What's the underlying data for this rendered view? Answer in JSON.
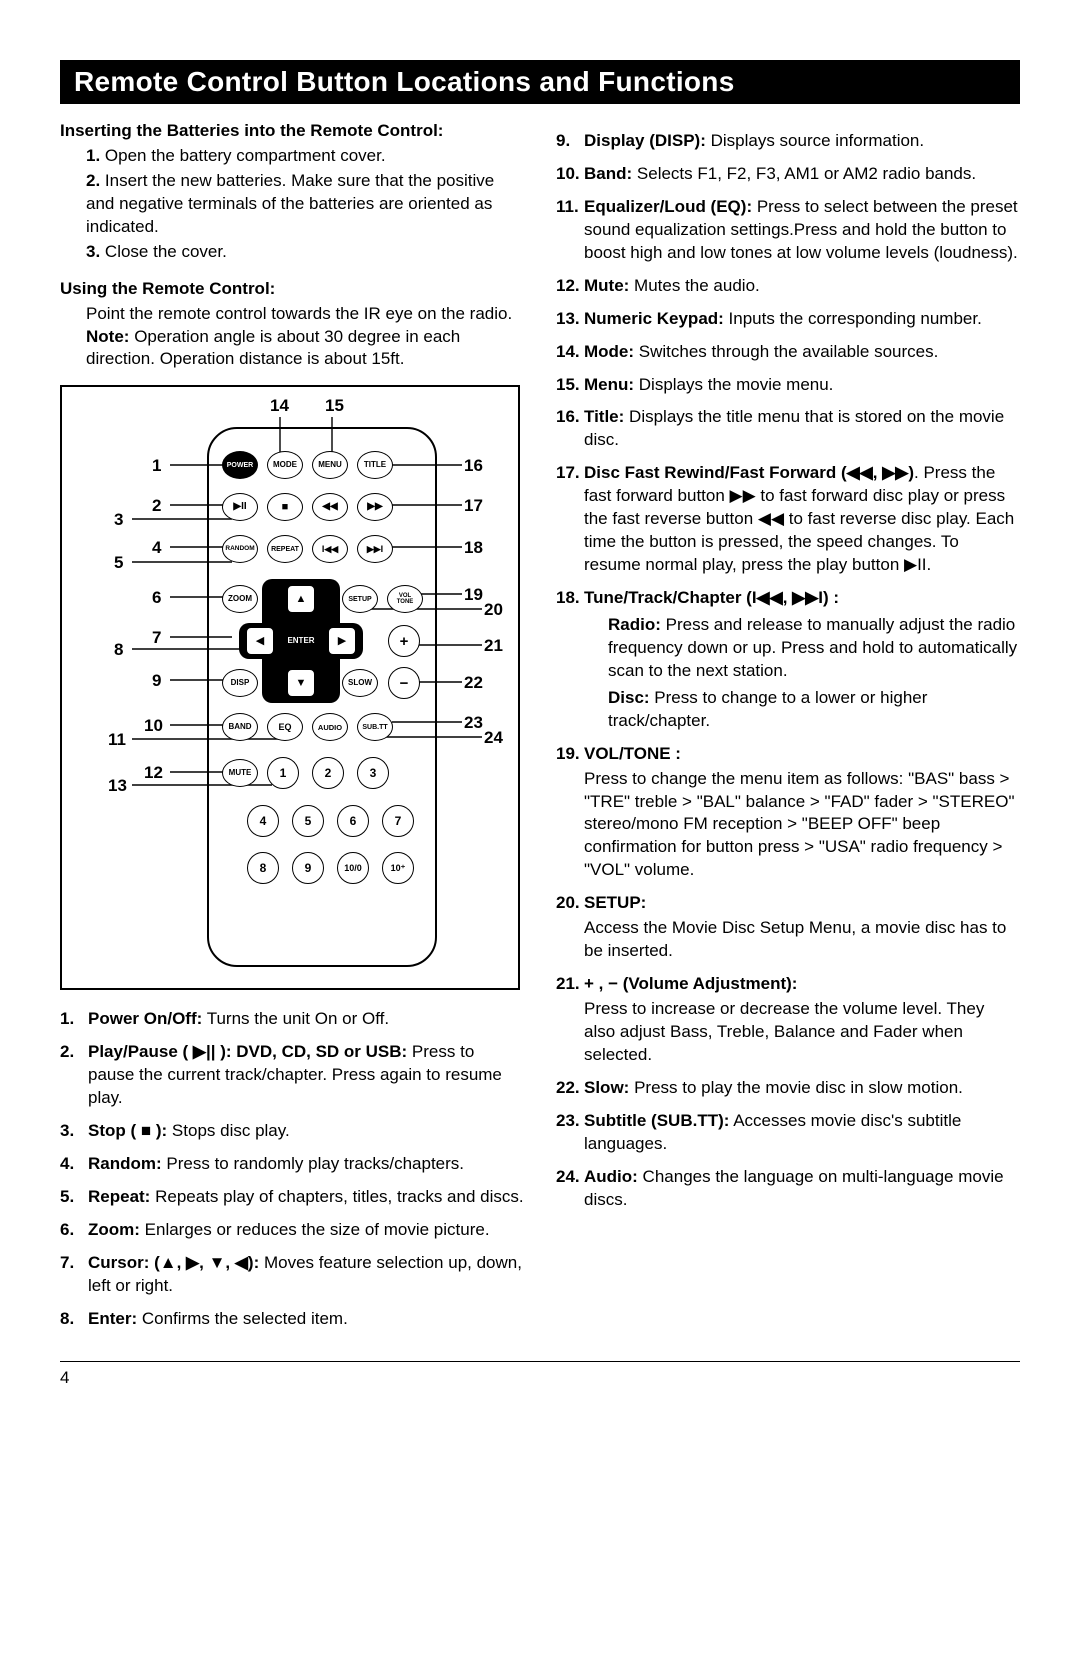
{
  "title": "Remote Control Button Locations and Functions",
  "page_number": "4",
  "intro": {
    "batteries_heading": "Inserting the Batteries into the Remote Control:",
    "batteries_steps": [
      "Open the battery compartment cover.",
      "Insert the new batteries. Make sure that the positive and negative terminals of the batteries are oriented as indicated.",
      "Close the cover."
    ],
    "using_heading": "Using the Remote Control:",
    "using_body": "Point the remote control towards the IR eye on the radio.",
    "using_note_label": "Note:",
    "using_note": "Operation angle is about 30 degree in each direction. Operation distance is about 15ft."
  },
  "diagram": {
    "top_labels": [
      "14",
      "15"
    ],
    "left_labels": [
      "1",
      "2",
      "3",
      "4",
      "5",
      "6",
      "7",
      "8",
      "9",
      "10",
      "11",
      "12",
      "13"
    ],
    "right_labels": [
      "16",
      "17",
      "18",
      "19",
      "20",
      "21",
      "22",
      "23",
      "24"
    ],
    "row1": [
      "POWER",
      "MODE",
      "MENU",
      "TITLE"
    ],
    "row2": [
      "▶II",
      "■",
      "◀◀",
      "▶▶"
    ],
    "row3": [
      "RANDOM",
      "REPEAT",
      "I◀◀",
      "▶▶I"
    ],
    "row4": [
      "ZOOM",
      "▲",
      "SETUP",
      "VOL\nTONE"
    ],
    "row5": [
      "◀",
      "ENTER",
      "▶",
      "+"
    ],
    "row6": [
      "DISP",
      "▼",
      "SLOW",
      "−"
    ],
    "row7": [
      "BAND",
      "EQ",
      "AUDIO",
      "SUB.TT"
    ],
    "row8": [
      "MUTE",
      "1",
      "2",
      "3"
    ],
    "keypad_row2": [
      "4",
      "5",
      "6",
      "7"
    ],
    "keypad_row3": [
      "8",
      "9",
      "10/0",
      "10⁺"
    ]
  },
  "functions_left": [
    {
      "n": "1.",
      "label": "Power On/Off:",
      "text": " Turns the unit On or Off."
    },
    {
      "n": "2.",
      "label": "Play/Pause ( ▶|| ): DVD, CD, SD or USB:",
      "text": " Press to pause the current track/chapter. Press again to resume play."
    },
    {
      "n": "3.",
      "label": "Stop ( ■ ):",
      "text": " Stops disc play."
    },
    {
      "n": "4.",
      "label": "Random:",
      "text": " Press to randomly play tracks/chapters."
    },
    {
      "n": "5.",
      "label": "Repeat:",
      "text": " Repeats play of chapters, titles, tracks and discs."
    },
    {
      "n": "6.",
      "label": "Zoom:",
      "text": " Enlarges or reduces the size of movie picture."
    },
    {
      "n": "7.",
      "label": "Cursor: (▲, ▶, ▼, ◀):",
      "text": " Moves feature selection up, down, left or right."
    },
    {
      "n": "8.",
      "label": "Enter:",
      "text": " Confirms the selected item."
    }
  ],
  "functions_right": [
    {
      "n": "9.",
      "label": "Display (DISP):",
      "text": " Displays source information."
    },
    {
      "n": "10.",
      "label": "Band:",
      "text": " Selects F1, F2, F3, AM1 or AM2 radio bands."
    },
    {
      "n": "11.",
      "label": "Equalizer/Loud (EQ):",
      "text": " Press to select between the preset sound equalization settings.Press and hold the button to boost high and low tones at low volume levels (loudness)."
    },
    {
      "n": "12.",
      "label": "Mute:",
      "text": " Mutes the audio."
    },
    {
      "n": "13.",
      "label": "Numeric Keypad:",
      "text": " Inputs the corresponding number."
    },
    {
      "n": "14.",
      "label": "Mode:",
      "text": " Switches through the available sources."
    },
    {
      "n": "15.",
      "label": "Menu:",
      "text": " Displays the movie menu."
    },
    {
      "n": "16.",
      "label": "Title:",
      "text": " Displays the title menu that is stored on the movie disc."
    },
    {
      "n": "17.",
      "label": "Disc Fast Rewind/Fast Forward (◀◀, ▶▶)",
      "text": ". Press the fast forward button ▶▶ to fast forward disc play or press the fast reverse button ◀◀ to fast reverse disc play. Each time the button is pressed, the speed changes. To resume normal play, press the play button ▶II."
    },
    {
      "n": "18.",
      "label": "Tune/Track/Chapter (I◀◀, ▶▶I) :",
      "text": "",
      "subs": [
        {
          "slabel": "Radio:",
          "stext": " Press and release to manually adjust the radio frequency down or up. Press and hold to automatically scan to the next station."
        },
        {
          "slabel": "Disc:",
          "stext": " Press to change to a lower or higher track/chapter."
        }
      ]
    },
    {
      "n": "19.",
      "label": "VOL/TONE :",
      "text": "",
      "body": "Press to change the menu item as follows: \"BAS\" bass > \"TRE\" treble > \"BAL\" balance > \"FAD\" fader > \"STEREO\" stereo/mono FM reception > \"BEEP OFF\" beep confirmation for button press > \"USA\" radio frequency > \"VOL\" volume."
    },
    {
      "n": "20.",
      "label": "SETUP:",
      "text": "",
      "body": "Access the Movie Disc Setup Menu, a movie disc has to be inserted."
    },
    {
      "n": "21.",
      "label": "+ , − (Volume Adjustment):",
      "text": "",
      "body": "Press to increase or decrease the volume level. They also adjust Bass, Treble, Balance and Fader when selected."
    },
    {
      "n": "22.",
      "label": "Slow:",
      "text": " Press to play the movie disc in slow motion."
    },
    {
      "n": "23.",
      "label": "Subtitle (SUB.TT):",
      "text": " Accesses movie disc's subtitle languages."
    },
    {
      "n": "24.",
      "label": "Audio:",
      "text": " Changes the language on multi-language movie discs."
    }
  ]
}
